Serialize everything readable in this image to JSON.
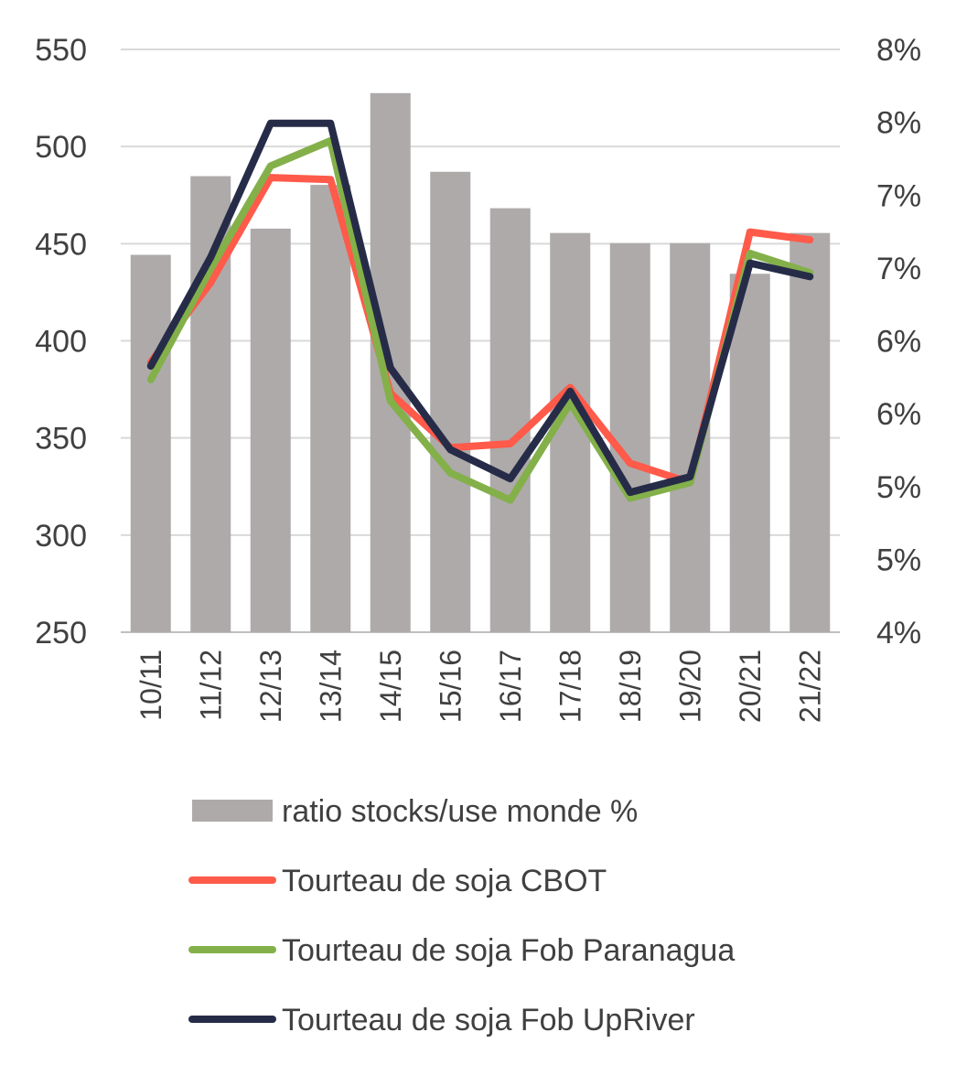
{
  "colors": {
    "bars": "#aeaaaa",
    "grid": "#d9d9d9",
    "text": "#404040",
    "series": [
      "#ff5a4a",
      "#84b04a",
      "#262c48"
    ]
  },
  "chart_data": {
    "type": "bar",
    "categories": [
      "10/11",
      "11/12",
      "12/13",
      "13/14",
      "14/15",
      "15/16",
      "16/17",
      "17/18",
      "18/19",
      "19/20",
      "20/21",
      "21/22"
    ],
    "left_axis": {
      "ylim": [
        250,
        550
      ],
      "ticks": [
        "550",
        "500",
        "450",
        "400",
        "350",
        "300",
        "250"
      ]
    },
    "right_axis": {
      "ylim": [
        4,
        8
      ],
      "ticks": [
        "8%",
        "8%",
        "7%",
        "7%",
        "6%",
        "6%",
        "5%",
        "5%",
        "4%"
      ]
    },
    "bars": {
      "name": "ratio stocks/use monde %",
      "axis": "right",
      "values": [
        6.59,
        7.13,
        6.77,
        7.07,
        7.7,
        7.16,
        6.91,
        6.74,
        6.67,
        6.67,
        6.46,
        6.74
      ]
    },
    "series": [
      {
        "name": "Tourteau de soja CBOT",
        "axis": "left",
        "values": [
          389,
          430,
          484,
          483,
          373,
          345,
          347,
          376,
          337,
          327,
          456,
          452
        ]
      },
      {
        "name": "Tourteau de soja Fob Paranagua",
        "axis": "left",
        "values": [
          380,
          437,
          490,
          503,
          369,
          332,
          318,
          368,
          319,
          327,
          445,
          435
        ]
      },
      {
        "name": "Tourteau de soja Fob UpRiver",
        "axis": "left",
        "values": [
          387,
          443,
          512,
          512,
          386,
          344,
          329,
          374,
          322,
          330,
          440,
          433
        ]
      }
    ],
    "legend": {
      "position": "bottom",
      "items": [
        "ratio stocks/use monde %",
        "Tourteau de soja CBOT",
        "Tourteau de soja Fob Paranagua",
        "Tourteau de soja Fob UpRiver"
      ]
    },
    "grid": true
  }
}
